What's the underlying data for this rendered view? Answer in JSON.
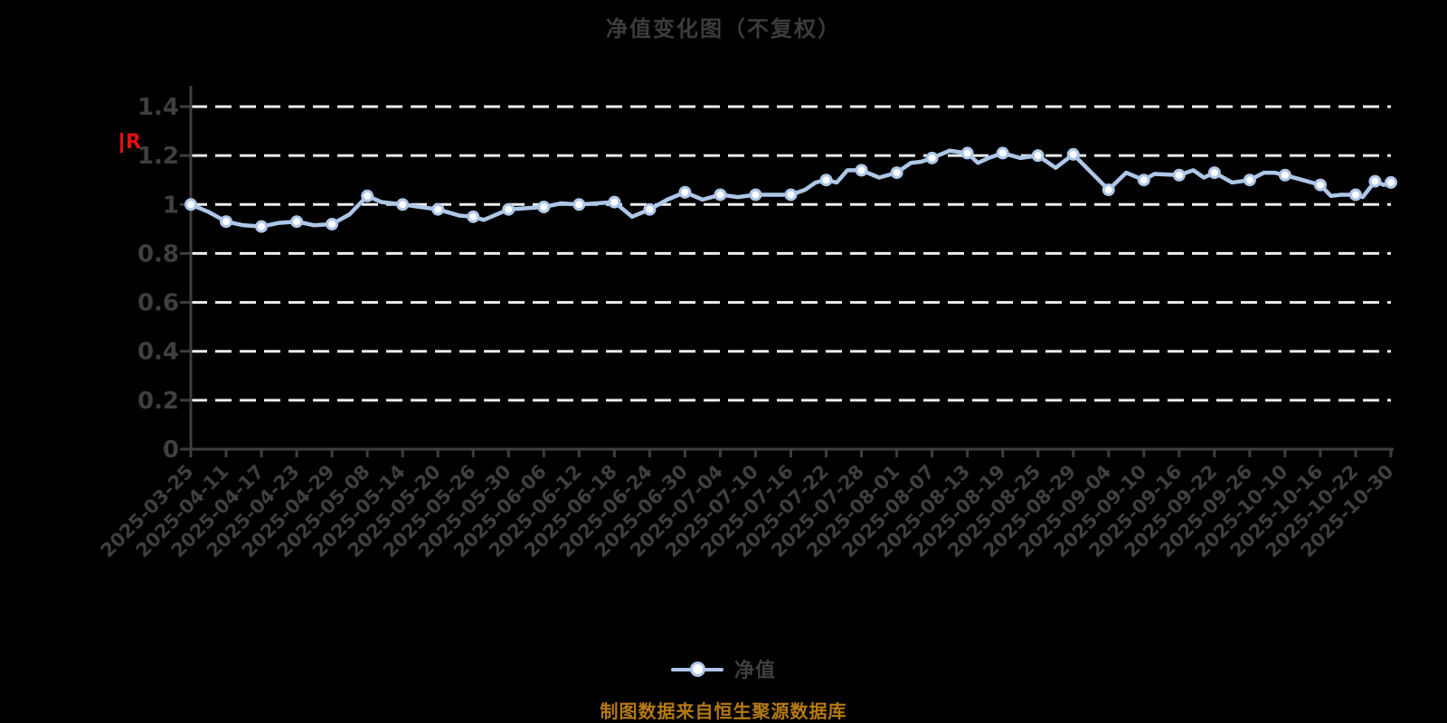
{
  "header": {
    "title": "净值变化图（不复权）"
  },
  "annotations": {
    "red_marker_text": "R"
  },
  "legend": {
    "items": [
      {
        "label": "净值"
      }
    ]
  },
  "footer": {
    "source_note": "制图数据来自恒生聚源数据库"
  },
  "colors": {
    "background": "#000000",
    "title": "#3c3c3c",
    "axis": "#3e3e3e",
    "tick_label": "#3f3f3f",
    "grid": "#ededed",
    "line": "#aec7e8",
    "marker_fill": "#ffffff",
    "red_marker": "#e31010",
    "footer_note": "#b57a12"
  },
  "chart_data": {
    "type": "line",
    "title": "净值变化图（不复权）",
    "xlabel": "",
    "ylabel": "",
    "ylim": [
      0,
      1.4
    ],
    "grid": "horizontal dashed",
    "legend_position": "bottom",
    "y_ticks": [
      0,
      0.2,
      0.4,
      0.6,
      0.8,
      1.0,
      1.2,
      1.4
    ],
    "y_tick_labels": [
      "0",
      "0.2",
      "0.4",
      "0.6",
      "0.8",
      "1",
      "1.2",
      "1.4"
    ],
    "categories": [
      "2025-03-25",
      "2025-04-11",
      "2025-04-17",
      "2025-04-23",
      "2025-04-29",
      "2025-05-08",
      "2025-05-14",
      "2025-05-20",
      "2025-05-26",
      "2025-05-30",
      "2025-06-06",
      "2025-06-12",
      "2025-06-18",
      "2025-06-24",
      "2025-06-30",
      "2025-07-04",
      "2025-07-10",
      "2025-07-16",
      "2025-07-22",
      "2025-07-28",
      "2025-08-01",
      "2025-08-07",
      "2025-08-13",
      "2025-08-19",
      "2025-08-25",
      "2025-08-29",
      "2025-09-04",
      "2025-09-10",
      "2025-09-16",
      "2025-09-22",
      "2025-09-26",
      "2025-10-10",
      "2025-10-16",
      "2025-10-22",
      "2025-10-30"
    ],
    "series": [
      {
        "name": "净值",
        "color": "#aec7e8",
        "marker": {
          "fill": "#ffffff",
          "stroke": "#aec7e8"
        },
        "points": [
          [
            0,
            1.0,
            1
          ],
          [
            0.5,
            0.97,
            0
          ],
          [
            1,
            0.93,
            1
          ],
          [
            1.5,
            0.915,
            0
          ],
          [
            2,
            0.91,
            1
          ],
          [
            2.5,
            0.925,
            0
          ],
          [
            3,
            0.93,
            1
          ],
          [
            3.5,
            0.915,
            0
          ],
          [
            4,
            0.92,
            1
          ],
          [
            4.5,
            0.96,
            0
          ],
          [
            5,
            1.035,
            1
          ],
          [
            5.4,
            1.01,
            0
          ],
          [
            6,
            1.0,
            1
          ],
          [
            6.5,
            0.99,
            0
          ],
          [
            7,
            0.98,
            1
          ],
          [
            7.6,
            0.955,
            0
          ],
          [
            8,
            0.95,
            1
          ],
          [
            8.3,
            0.937,
            0
          ],
          [
            9,
            0.98,
            1
          ],
          [
            9.5,
            0.985,
            0
          ],
          [
            10,
            0.99,
            1
          ],
          [
            10.5,
            1.005,
            0
          ],
          [
            11,
            1.0,
            1
          ],
          [
            11.5,
            1.005,
            0
          ],
          [
            12,
            1.01,
            1
          ],
          [
            12.5,
            0.95,
            0
          ],
          [
            13,
            0.98,
            1
          ],
          [
            13.5,
            1.02,
            0
          ],
          [
            14,
            1.05,
            1
          ],
          [
            14.5,
            1.02,
            0
          ],
          [
            15,
            1.04,
            1
          ],
          [
            15.5,
            1.03,
            0
          ],
          [
            16,
            1.04,
            1
          ],
          [
            16.5,
            1.04,
            0
          ],
          [
            17,
            1.04,
            1
          ],
          [
            17.4,
            1.06,
            0
          ],
          [
            17.7,
            1.09,
            0
          ],
          [
            18,
            1.1,
            1
          ],
          [
            18.3,
            1.09,
            0
          ],
          [
            18.6,
            1.14,
            0
          ],
          [
            19,
            1.14,
            1
          ],
          [
            19.5,
            1.11,
            0
          ],
          [
            20,
            1.13,
            1
          ],
          [
            20.4,
            1.17,
            0
          ],
          [
            20.7,
            1.175,
            0
          ],
          [
            21,
            1.19,
            1
          ],
          [
            21.5,
            1.22,
            0
          ],
          [
            22,
            1.21,
            1
          ],
          [
            22.3,
            1.17,
            0
          ],
          [
            22.6,
            1.19,
            0
          ],
          [
            23,
            1.21,
            1
          ],
          [
            23.5,
            1.19,
            0
          ],
          [
            24,
            1.2,
            1
          ],
          [
            24.5,
            1.15,
            0
          ],
          [
            25,
            1.205,
            1
          ],
          [
            26,
            1.06,
            1
          ],
          [
            26.5,
            1.13,
            0
          ],
          [
            27,
            1.1,
            1
          ],
          [
            27.3,
            1.125,
            0
          ],
          [
            28,
            1.12,
            1
          ],
          [
            28.4,
            1.14,
            0
          ],
          [
            28.7,
            1.11,
            0
          ],
          [
            29,
            1.13,
            1
          ],
          [
            29.5,
            1.09,
            0
          ],
          [
            30,
            1.1,
            1
          ],
          [
            30.4,
            1.13,
            0
          ],
          [
            30.7,
            1.13,
            0
          ],
          [
            31,
            1.12,
            1
          ],
          [
            31.5,
            1.1,
            0
          ],
          [
            32,
            1.08,
            1
          ],
          [
            32.3,
            1.035,
            0
          ],
          [
            32.6,
            1.04,
            0
          ],
          [
            33,
            1.04,
            1
          ],
          [
            33.2,
            1.03,
            0
          ],
          [
            33.55,
            1.095,
            1
          ],
          [
            33.8,
            1.08,
            0
          ],
          [
            34,
            1.09,
            1
          ]
        ]
      }
    ]
  }
}
